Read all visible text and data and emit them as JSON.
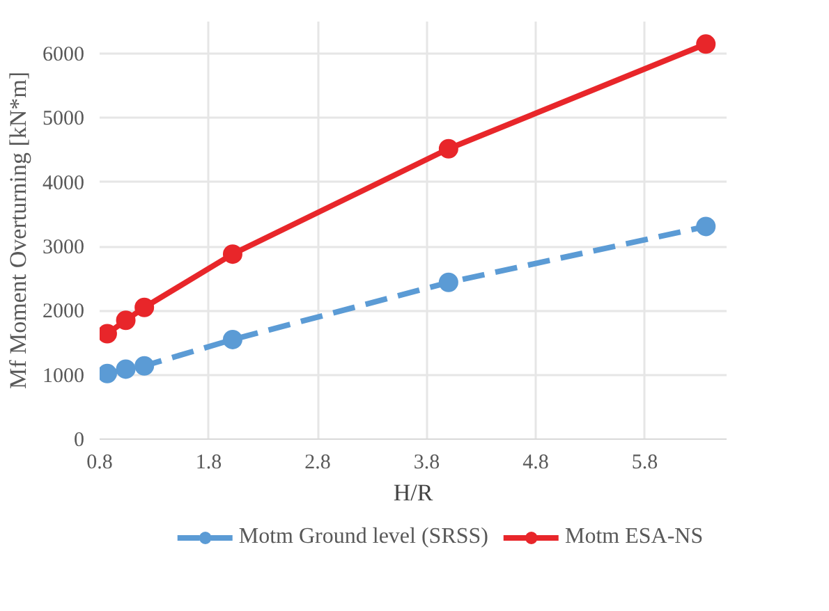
{
  "chart_data": {
    "type": "line",
    "xlabel": "H/R",
    "ylabel": "Mf Moment Overturning [kN*m]",
    "xlim": [
      0.8,
      6.55
    ],
    "xticks": [
      0.8,
      1.8,
      2.8,
      3.8,
      4.8,
      5.8
    ],
    "ylim": [
      0,
      6500
    ],
    "yticks": [
      0,
      1000,
      2000,
      3000,
      4000,
      5000,
      6000
    ],
    "grid": true,
    "legend": "bottom",
    "marker": "circle",
    "series": [
      {
        "name": "Motm Ground level (SRSS)",
        "color": "#5b9bd5",
        "line_style": "dashed",
        "x": [
          0.87,
          1.04,
          1.21,
          2.02,
          4.0,
          6.36
        ],
        "values": [
          1020,
          1090,
          1140,
          1550,
          2440,
          3310
        ]
      },
      {
        "name": "Motm ESA-NS",
        "color": "#e8262a",
        "line_style": "solid",
        "x": [
          0.87,
          1.04,
          1.21,
          2.02,
          4.0,
          6.36
        ],
        "values": [
          1640,
          1850,
          2050,
          2880,
          4520,
          6150
        ]
      }
    ]
  }
}
